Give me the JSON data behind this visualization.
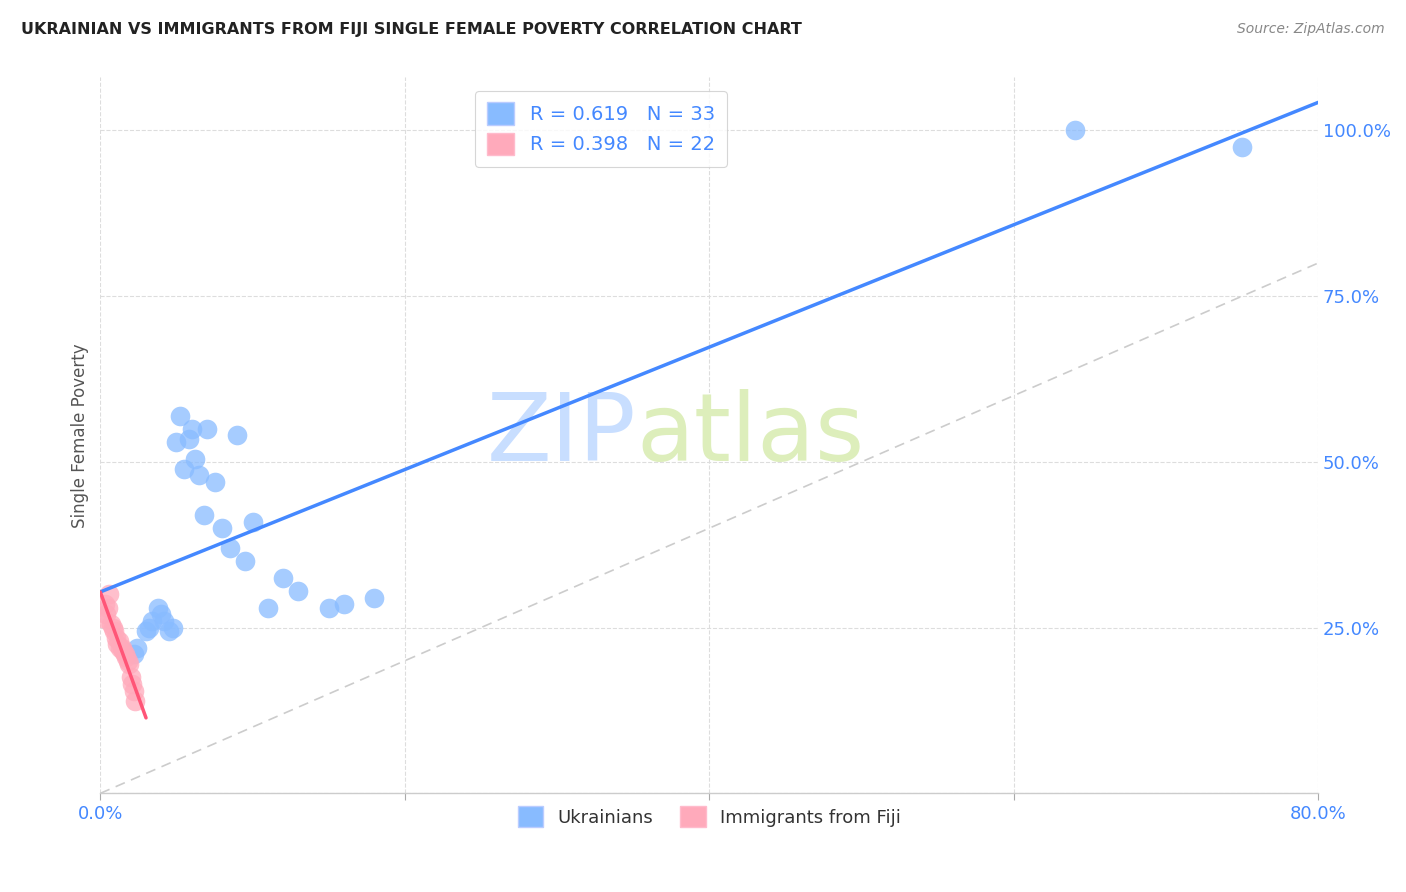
{
  "title": "UKRAINIAN VS IMMIGRANTS FROM FIJI SINGLE FEMALE POVERTY CORRELATION CHART",
  "source": "Source: ZipAtlas.com",
  "ylabel": "Single Female Poverty",
  "xlim": [
    0.0,
    0.8
  ],
  "ylim": [
    0.0,
    1.08
  ],
  "ytick_labels": [
    "",
    "25.0%",
    "50.0%",
    "75.0%",
    "100.0%"
  ],
  "ytick_values": [
    0.0,
    0.25,
    0.5,
    0.75,
    1.0
  ],
  "xtick_values": [
    0.0,
    0.2,
    0.4,
    0.6,
    0.8
  ],
  "xtick_labels": [
    "0.0%",
    "",
    "",
    "",
    "80.0%"
  ],
  "background_color": "#ffffff",
  "watermark_zip": "ZIP",
  "watermark_atlas": "atlas",
  "legend_R1": "R = 0.619",
  "legend_N1": "N = 33",
  "legend_R2": "R = 0.398",
  "legend_N2": "N = 22",
  "blue_scatter_color": "#88bbff",
  "pink_scatter_color": "#ffaabb",
  "blue_line_color": "#4488ff",
  "pink_line_color": "#ff5577",
  "diag_color": "#cccccc",
  "text_color": "#4488ff",
  "ukrainians_x": [
    0.022,
    0.024,
    0.03,
    0.032,
    0.034,
    0.038,
    0.04,
    0.042,
    0.045,
    0.048,
    0.05,
    0.052,
    0.055,
    0.058,
    0.06,
    0.062,
    0.065,
    0.068,
    0.07,
    0.075,
    0.08,
    0.085,
    0.09,
    0.095,
    0.1,
    0.11,
    0.12,
    0.13,
    0.15,
    0.16,
    0.18,
    0.64,
    0.75
  ],
  "ukrainians_y": [
    0.21,
    0.22,
    0.245,
    0.25,
    0.26,
    0.28,
    0.27,
    0.26,
    0.245,
    0.25,
    0.53,
    0.57,
    0.49,
    0.535,
    0.55,
    0.505,
    0.48,
    0.42,
    0.55,
    0.47,
    0.4,
    0.37,
    0.54,
    0.35,
    0.41,
    0.28,
    0.325,
    0.305,
    0.28,
    0.285,
    0.295,
    1.0,
    0.975
  ],
  "fiji_x": [
    0.002,
    0.003,
    0.004,
    0.005,
    0.006,
    0.007,
    0.008,
    0.009,
    0.01,
    0.011,
    0.012,
    0.013,
    0.014,
    0.015,
    0.016,
    0.017,
    0.018,
    0.019,
    0.02,
    0.021,
    0.022,
    0.023
  ],
  "fiji_y": [
    0.265,
    0.285,
    0.27,
    0.28,
    0.3,
    0.255,
    0.25,
    0.245,
    0.235,
    0.225,
    0.23,
    0.22,
    0.22,
    0.215,
    0.21,
    0.205,
    0.2,
    0.195,
    0.175,
    0.165,
    0.155,
    0.14
  ]
}
